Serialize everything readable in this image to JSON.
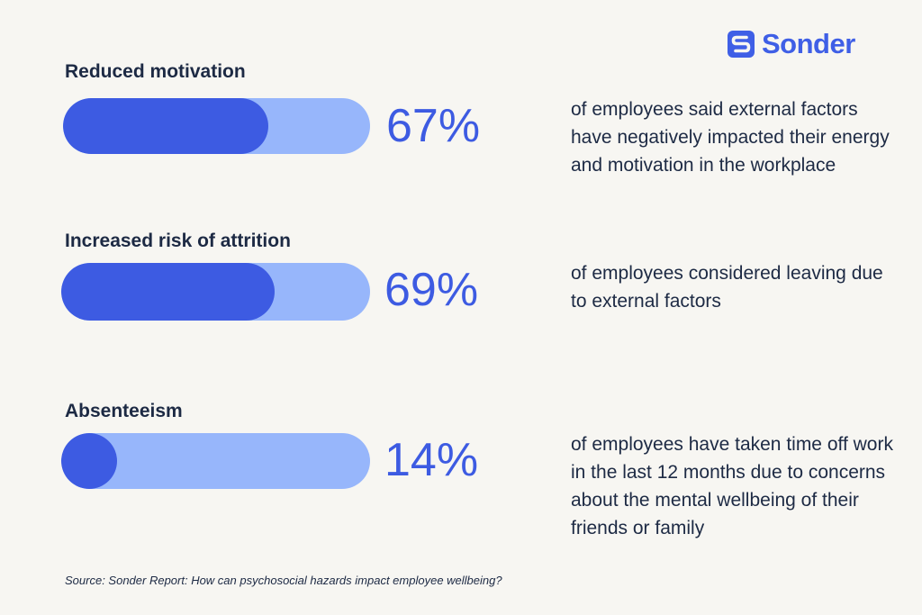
{
  "brand": {
    "name": "Sonder",
    "logo_icon": "sonder-s-icon",
    "color": "#3f5fe6"
  },
  "colors": {
    "background": "#f7f6f2",
    "bar_fill": "#3d5be2",
    "bar_track": "#97b6fb",
    "text": "#1d2a44"
  },
  "chart_data": {
    "type": "bar",
    "orientation": "horizontal",
    "categories": [
      "Reduced motivation",
      "Increased risk of attrition",
      "Absenteeism"
    ],
    "values": [
      67,
      69,
      14
    ],
    "value_labels": [
      "67%",
      "69%",
      "14%"
    ],
    "value_unit": "%",
    "xlim": [
      0,
      100
    ],
    "descriptions": [
      "of employees said external factors have negatively impacted their energy and motivation in the workplace",
      "of employees considered leaving due to external factors",
      "of employees have taken time off work in the last 12 months due to concerns about the mental wellbeing of their friends or family"
    ],
    "source": "Source: Sonder Report: How can psychosocial hazards impact employee wellbeing?"
  }
}
